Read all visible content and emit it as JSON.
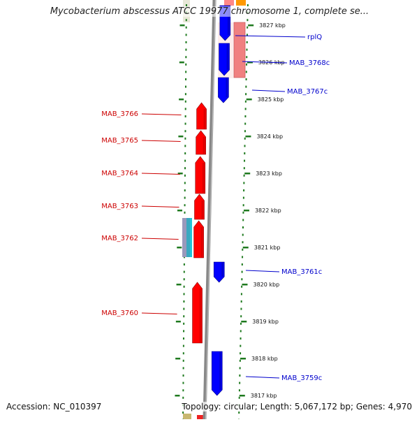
{
  "header": {
    "title": "Mycobacterium abscessus ATCC 19977 chromosome 1, complete se..."
  },
  "footer": {
    "accession": "Accession: NC_010397",
    "summary": "Topology: circular; Length: 5,067,172 bp; Genes: 4,970"
  },
  "colors": {
    "forward_gene": "#ff0000",
    "reverse_gene": "#0000ff",
    "rna_gene": "#f08080",
    "label_forward": "#cc0000",
    "label_reverse": "#0000cc",
    "backbone": "#888888",
    "tick": "#1f7a1f"
  },
  "ticks": [
    {
      "label": "3827 kbp"
    },
    {
      "label": "3826 kbp"
    },
    {
      "label": "3825 kbp"
    },
    {
      "label": "3824 kbp"
    },
    {
      "label": "3823 kbp"
    },
    {
      "label": "3822 kbp"
    },
    {
      "label": "3821 kbp"
    },
    {
      "label": "3820 kbp"
    },
    {
      "label": "3819 kbp"
    },
    {
      "label": "3818 kbp"
    },
    {
      "label": "3817 kbp"
    }
  ],
  "genes_forward": [
    {
      "name": "MAB_3766"
    },
    {
      "name": "MAB_3765"
    },
    {
      "name": "MAB_3764"
    },
    {
      "name": "MAB_3763"
    },
    {
      "name": "MAB_3762"
    },
    {
      "name": "MAB_3760"
    }
  ],
  "genes_reverse": [
    {
      "name": "rplQ"
    },
    {
      "name": "MAB_3768c"
    },
    {
      "name": "MAB_3767c"
    },
    {
      "name": "MAB_3761c"
    },
    {
      "name": "MAB_3759c"
    }
  ]
}
